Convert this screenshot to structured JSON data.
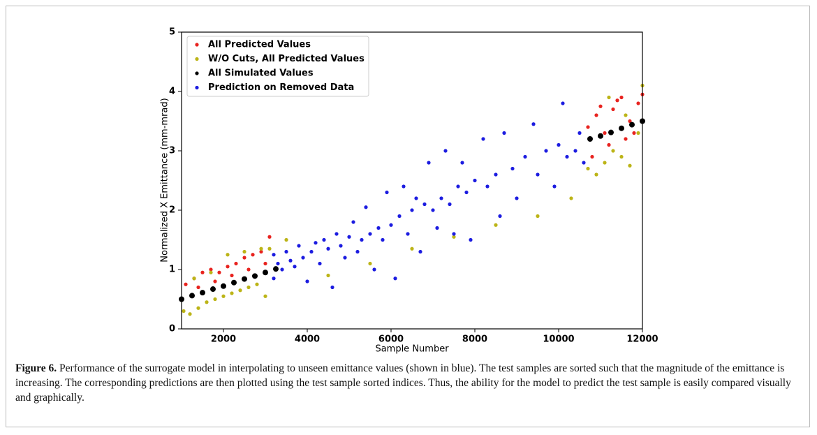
{
  "chart_data": {
    "type": "scatter",
    "xlabel": "Sample Number",
    "ylabel": "Normalized X Emittance (mm-mrad)",
    "xlim": [
      1000,
      12000
    ],
    "ylim": [
      0,
      5
    ],
    "xticks": [
      2000,
      4000,
      6000,
      8000,
      10000,
      12000
    ],
    "yticks": [
      0,
      1,
      2,
      3,
      4,
      5
    ],
    "legend": "upper left",
    "series": [
      {
        "name": "All Predicted Values",
        "color": "#e8231f",
        "x": [
          1100,
          1300,
          1500,
          1700,
          1900,
          2100,
          2300,
          2500,
          2700,
          2900,
          3100,
          1400,
          1800,
          2200,
          2600,
          3000,
          10700,
          10900,
          11100,
          11300,
          11500,
          11700,
          11900,
          10800,
          11200,
          11600,
          12000,
          11000,
          11400,
          11800
        ],
        "values": [
          0.75,
          0.85,
          0.95,
          1.0,
          0.95,
          1.05,
          1.1,
          1.2,
          1.25,
          1.3,
          1.55,
          0.7,
          0.8,
          0.9,
          1.0,
          1.1,
          3.4,
          3.6,
          3.3,
          3.7,
          3.9,
          3.5,
          3.8,
          2.9,
          3.1,
          3.2,
          3.95,
          3.75,
          3.85,
          3.3
        ]
      },
      {
        "name": "W/O Cuts, All Predicted Values",
        "color": "#bcb417",
        "x": [
          1050,
          1200,
          1400,
          1600,
          1800,
          2000,
          2200,
          2400,
          2600,
          2800,
          3000,
          3100,
          1300,
          1700,
          2100,
          2500,
          2900,
          3500,
          4500,
          5500,
          6500,
          7500,
          8500,
          9500,
          10300,
          10700,
          10900,
          11100,
          11300,
          11500,
          11700,
          11900,
          12000,
          11200,
          11600
        ],
        "values": [
          0.3,
          0.25,
          0.35,
          0.45,
          0.5,
          0.55,
          0.6,
          0.65,
          0.7,
          0.75,
          0.55,
          1.35,
          0.85,
          0.95,
          1.25,
          1.3,
          1.35,
          1.5,
          0.9,
          1.1,
          1.35,
          1.55,
          1.75,
          1.9,
          2.2,
          2.7,
          2.6,
          2.8,
          3.0,
          2.9,
          2.75,
          3.3,
          4.1,
          3.9,
          3.6
        ]
      },
      {
        "name": "All Simulated Values",
        "color": "#000000",
        "x": [
          1000,
          1250,
          1500,
          1750,
          2000,
          2250,
          2500,
          2750,
          3000,
          3250,
          10750,
          11000,
          11250,
          11500,
          11750,
          12000
        ],
        "values": [
          0.5,
          0.56,
          0.61,
          0.67,
          0.72,
          0.78,
          0.84,
          0.89,
          0.95,
          1.01,
          3.2,
          3.25,
          3.31,
          3.38,
          3.44,
          3.5
        ]
      },
      {
        "name": "Prediction on Removed Data",
        "color": "#1c1ce0",
        "x": [
          3200,
          3200,
          3300,
          3400,
          3500,
          3600,
          3700,
          3800,
          3900,
          4000,
          4100,
          4200,
          4300,
          4400,
          4500,
          4600,
          4700,
          4800,
          4900,
          5000,
          5100,
          5200,
          5300,
          5400,
          5500,
          5600,
          5700,
          5800,
          5900,
          6000,
          6100,
          6200,
          6300,
          6400,
          6500,
          6600,
          6700,
          6800,
          6900,
          7000,
          7100,
          7200,
          7300,
          7400,
          7500,
          7600,
          7700,
          7800,
          7900,
          8000,
          8200,
          8300,
          8500,
          8600,
          8700,
          8900,
          9000,
          9200,
          9400,
          9500,
          9700,
          9900,
          10000,
          10100,
          10200,
          10400,
          10500,
          10600
        ],
        "values": [
          0.85,
          1.25,
          1.1,
          1.0,
          1.3,
          1.15,
          1.05,
          1.4,
          1.2,
          0.8,
          1.3,
          1.45,
          1.1,
          1.5,
          1.35,
          0.7,
          1.6,
          1.4,
          1.2,
          1.55,
          1.8,
          1.3,
          1.5,
          2.05,
          1.6,
          1.0,
          1.7,
          1.5,
          2.3,
          1.75,
          0.85,
          1.9,
          2.4,
          1.6,
          2.0,
          2.2,
          1.3,
          2.1,
          2.8,
          2.0,
          1.7,
          2.2,
          3.0,
          2.1,
          1.6,
          2.4,
          2.8,
          2.3,
          1.5,
          2.5,
          3.2,
          2.4,
          2.6,
          1.9,
          3.3,
          2.7,
          2.2,
          2.9,
          3.45,
          2.6,
          3.0,
          2.4,
          3.1,
          3.8,
          2.9,
          3.0,
          3.3,
          2.8
        ]
      }
    ]
  },
  "caption": {
    "label": "Figure 6.",
    "text": "Performance of the surrogate model in interpolating to unseen emittance values (shown in blue). The test samples are sorted such that the magnitude of the emittance is increasing. The corresponding predictions are then plotted using the test sample sorted indices. Thus, the ability for the model to predict the test sample is easily compared visually and graphically."
  }
}
